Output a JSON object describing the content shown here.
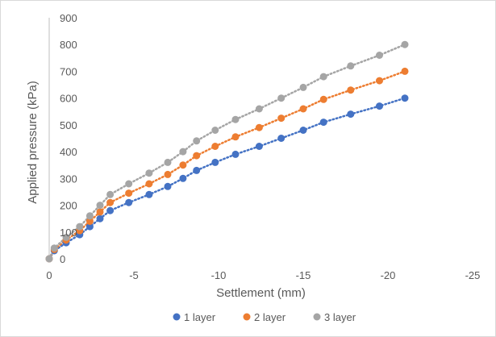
{
  "chart_data": {
    "type": "scatter",
    "title": "",
    "xlabel": "Settlement (mm)",
    "ylabel": "Applied pressure (kPa)",
    "xlim": [
      0,
      -25
    ],
    "ylim": [
      0,
      900
    ],
    "x_ticks": [
      0,
      -5,
      -10,
      -15,
      -20,
      -25
    ],
    "y_ticks": [
      0,
      100,
      200,
      300,
      400,
      500,
      600,
      700,
      800,
      900
    ],
    "x_tick_labels": [
      "0",
      "-5",
      "-10",
      "-15",
      "-20",
      "-25"
    ],
    "y_tick_labels": [
      "0",
      "100",
      "200",
      "300",
      "400",
      "500",
      "600",
      "700",
      "800",
      "900"
    ],
    "legend_position": "bottom",
    "trendline_style": "dotted",
    "series": [
      {
        "name": "1 layer",
        "color": "#4472c4",
        "x": [
          0,
          -0.3,
          -1.0,
          -1.8,
          -2.4,
          -3.0,
          -3.6,
          -4.7,
          -5.9,
          -7.0,
          -7.9,
          -8.7,
          -9.8,
          -11.0,
          -12.4,
          -13.7,
          -15.0,
          -16.2,
          -17.8,
          -19.5,
          -21.0
        ],
        "y": [
          0,
          30,
          60,
          90,
          120,
          150,
          180,
          210,
          240,
          270,
          300,
          330,
          360,
          390,
          420,
          450,
          480,
          510,
          540,
          570,
          600
        ]
      },
      {
        "name": "2 layer",
        "color": "#ed7d31",
        "x": [
          0,
          -0.3,
          -1.0,
          -1.8,
          -2.4,
          -3.0,
          -3.6,
          -4.7,
          -5.9,
          -7.0,
          -7.9,
          -8.7,
          -9.8,
          -11.0,
          -12.4,
          -13.7,
          -15.0,
          -16.2,
          -17.8,
          -19.5,
          -21.0
        ],
        "y": [
          0,
          35,
          70,
          105,
          140,
          175,
          210,
          245,
          280,
          315,
          350,
          385,
          420,
          455,
          490,
          525,
          560,
          595,
          630,
          665,
          700
        ]
      },
      {
        "name": "3 layer",
        "color": "#a5a5a5",
        "x": [
          0,
          -0.3,
          -1.0,
          -1.8,
          -2.4,
          -3.0,
          -3.6,
          -4.7,
          -5.9,
          -7.0,
          -7.9,
          -8.7,
          -9.8,
          -11.0,
          -12.4,
          -13.7,
          -15.0,
          -16.2,
          -17.8,
          -19.5,
          -21.0
        ],
        "y": [
          0,
          40,
          80,
          120,
          160,
          200,
          240,
          280,
          320,
          360,
          400,
          440,
          480,
          520,
          560,
          600,
          640,
          680,
          720,
          760,
          800
        ]
      }
    ]
  }
}
